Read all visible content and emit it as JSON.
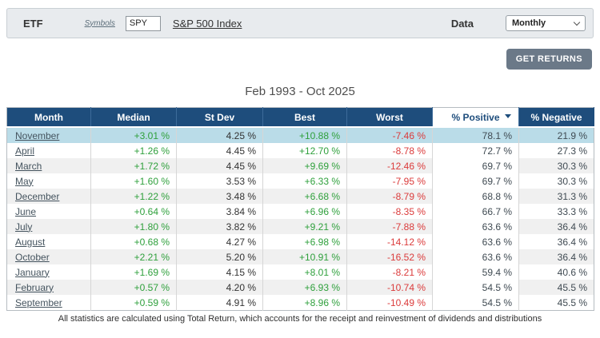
{
  "toolbar": {
    "etf_label": "ETF",
    "symbols_label": "Symbols",
    "symbol_value": "SPY",
    "index_link": "S&P 500 Index",
    "data_label": "Data",
    "data_select_value": "Monthly",
    "get_returns_label": "GET RETURNS"
  },
  "title": "Feb 1993 - Oct 2025",
  "table": {
    "columns": [
      "Month",
      "Median",
      "St Dev",
      "Best",
      "Worst",
      "% Positive",
      "% Negative"
    ],
    "sorted_column": "% Positive",
    "sort_direction": "descending",
    "rows": [
      {
        "month": "November",
        "median": "+3.01 %",
        "st_dev": "4.25 %",
        "best": "+10.88 %",
        "worst": "-7.46 %",
        "pct_positive": "78.1 %",
        "pct_negative": "21.9 %",
        "highlight": true
      },
      {
        "month": "April",
        "median": "+1.26 %",
        "st_dev": "4.45 %",
        "best": "+12.70 %",
        "worst": "-8.78 %",
        "pct_positive": "72.7 %",
        "pct_negative": "27.3 %",
        "highlight": false
      },
      {
        "month": "March",
        "median": "+1.72 %",
        "st_dev": "4.45 %",
        "best": "+9.69 %",
        "worst": "-12.46 %",
        "pct_positive": "69.7 %",
        "pct_negative": "30.3 %",
        "highlight": false
      },
      {
        "month": "May",
        "median": "+1.60 %",
        "st_dev": "3.53 %",
        "best": "+6.33 %",
        "worst": "-7.95 %",
        "pct_positive": "69.7 %",
        "pct_negative": "30.3 %",
        "highlight": false
      },
      {
        "month": "December",
        "median": "+1.22 %",
        "st_dev": "3.48 %",
        "best": "+6.68 %",
        "worst": "-8.79 %",
        "pct_positive": "68.8 %",
        "pct_negative": "31.3 %",
        "highlight": false
      },
      {
        "month": "June",
        "median": "+0.64 %",
        "st_dev": "3.84 %",
        "best": "+6.96 %",
        "worst": "-8.35 %",
        "pct_positive": "66.7 %",
        "pct_negative": "33.3 %",
        "highlight": false
      },
      {
        "month": "July",
        "median": "+1.80 %",
        "st_dev": "3.82 %",
        "best": "+9.21 %",
        "worst": "-7.88 %",
        "pct_positive": "63.6 %",
        "pct_negative": "36.4 %",
        "highlight": false
      },
      {
        "month": "August",
        "median": "+0.68 %",
        "st_dev": "4.27 %",
        "best": "+6.98 %",
        "worst": "-14.12 %",
        "pct_positive": "63.6 %",
        "pct_negative": "36.4 %",
        "highlight": false
      },
      {
        "month": "October",
        "median": "+2.21 %",
        "st_dev": "5.20 %",
        "best": "+10.91 %",
        "worst": "-16.52 %",
        "pct_positive": "63.6 %",
        "pct_negative": "36.4 %",
        "highlight": false
      },
      {
        "month": "January",
        "median": "+1.69 %",
        "st_dev": "4.15 %",
        "best": "+8.01 %",
        "worst": "-8.21 %",
        "pct_positive": "59.4 %",
        "pct_negative": "40.6 %",
        "highlight": false
      },
      {
        "month": "February",
        "median": "+0.57 %",
        "st_dev": "4.20 %",
        "best": "+6.93 %",
        "worst": "-10.74 %",
        "pct_positive": "54.5 %",
        "pct_negative": "45.5 %",
        "highlight": false
      },
      {
        "month": "September",
        "median": "+0.59 %",
        "st_dev": "4.91 %",
        "best": "+8.96 %",
        "worst": "-10.49 %",
        "pct_positive": "54.5 %",
        "pct_negative": "45.5 %",
        "highlight": false
      }
    ]
  },
  "footer_note": "All statistics are calculated using Total Return, which accounts for the receipt and reinvestment of dividends and distributions",
  "icons": {
    "select_chevron": "chevron-down",
    "sort_indicator": "caret-down"
  },
  "colors": {
    "header_bg": "#1E4D7C",
    "row_highlight": "#BADCE8",
    "stripe_gray": "#F0F0F0",
    "positive_green": "#2FA03C",
    "negative_red": "#DB3B3B",
    "toolbar_bg": "#E8EBEE",
    "button_bg": "#6B7988"
  }
}
